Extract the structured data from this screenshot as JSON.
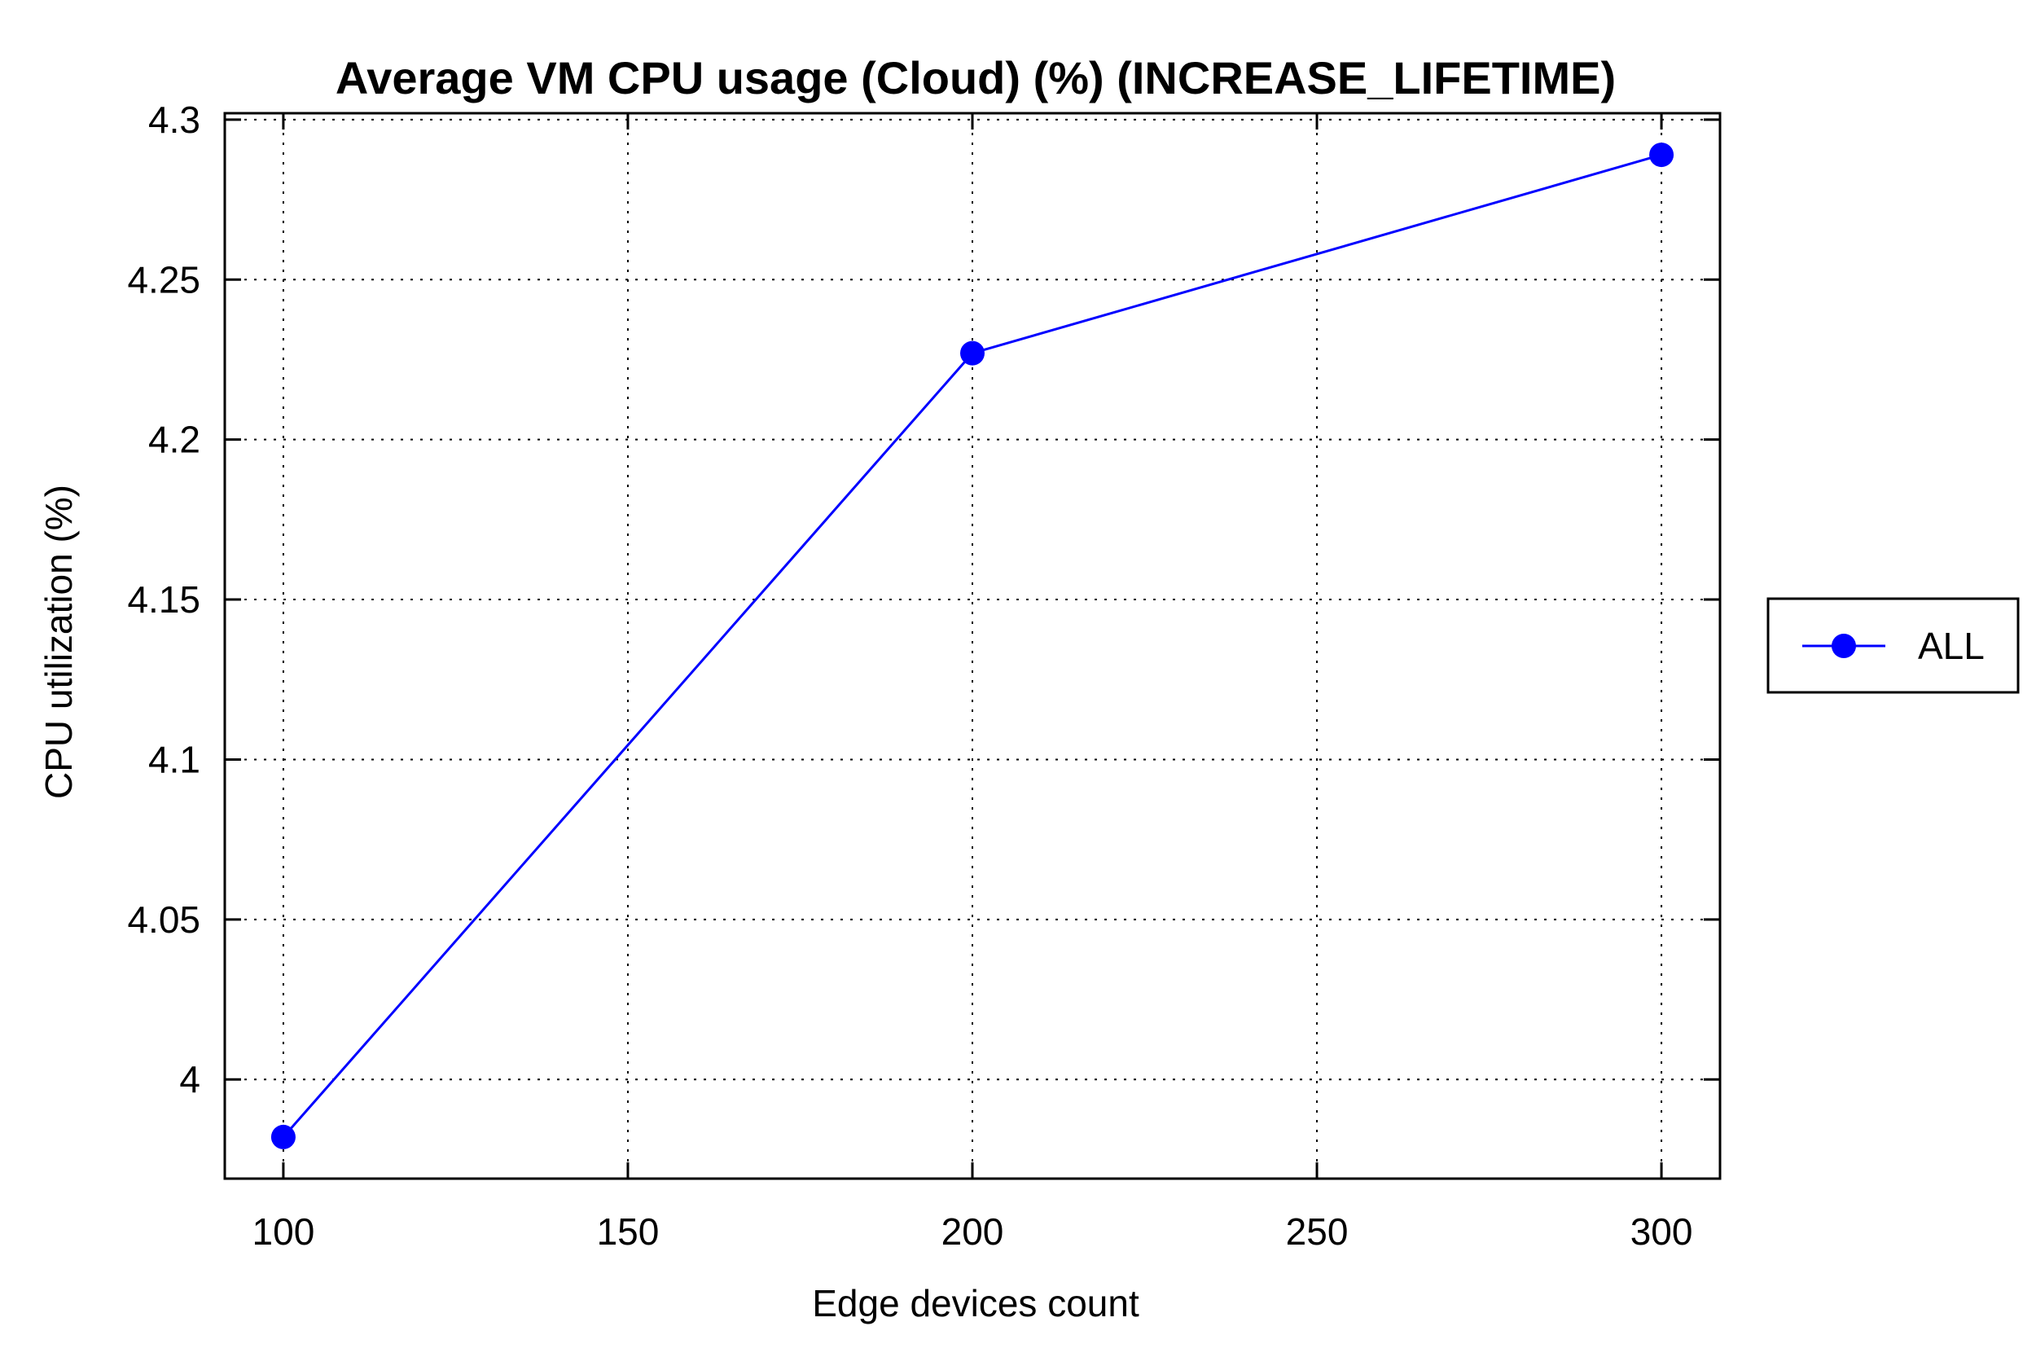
{
  "chart_data": {
    "type": "line",
    "title": "Average VM CPU usage (Cloud) (%) (INCREASE_LIFETIME)",
    "xlabel": "Edge devices count",
    "ylabel": "CPU utilization (%)",
    "x": [
      100,
      200,
      300
    ],
    "xticks": [
      "100",
      "150",
      "200",
      "250",
      "300"
    ],
    "yticks": [
      "4",
      "4.05",
      "4.1",
      "4.15",
      "4.2",
      "4.25",
      "4.3"
    ],
    "xlim": [
      91.5,
      308.5
    ],
    "ylim": [
      3.969,
      4.302
    ],
    "grid": true,
    "legend_position": "right",
    "series": [
      {
        "name": "ALL",
        "color": "#0000ff",
        "values": [
          3.982,
          4.227,
          4.289
        ]
      }
    ]
  }
}
